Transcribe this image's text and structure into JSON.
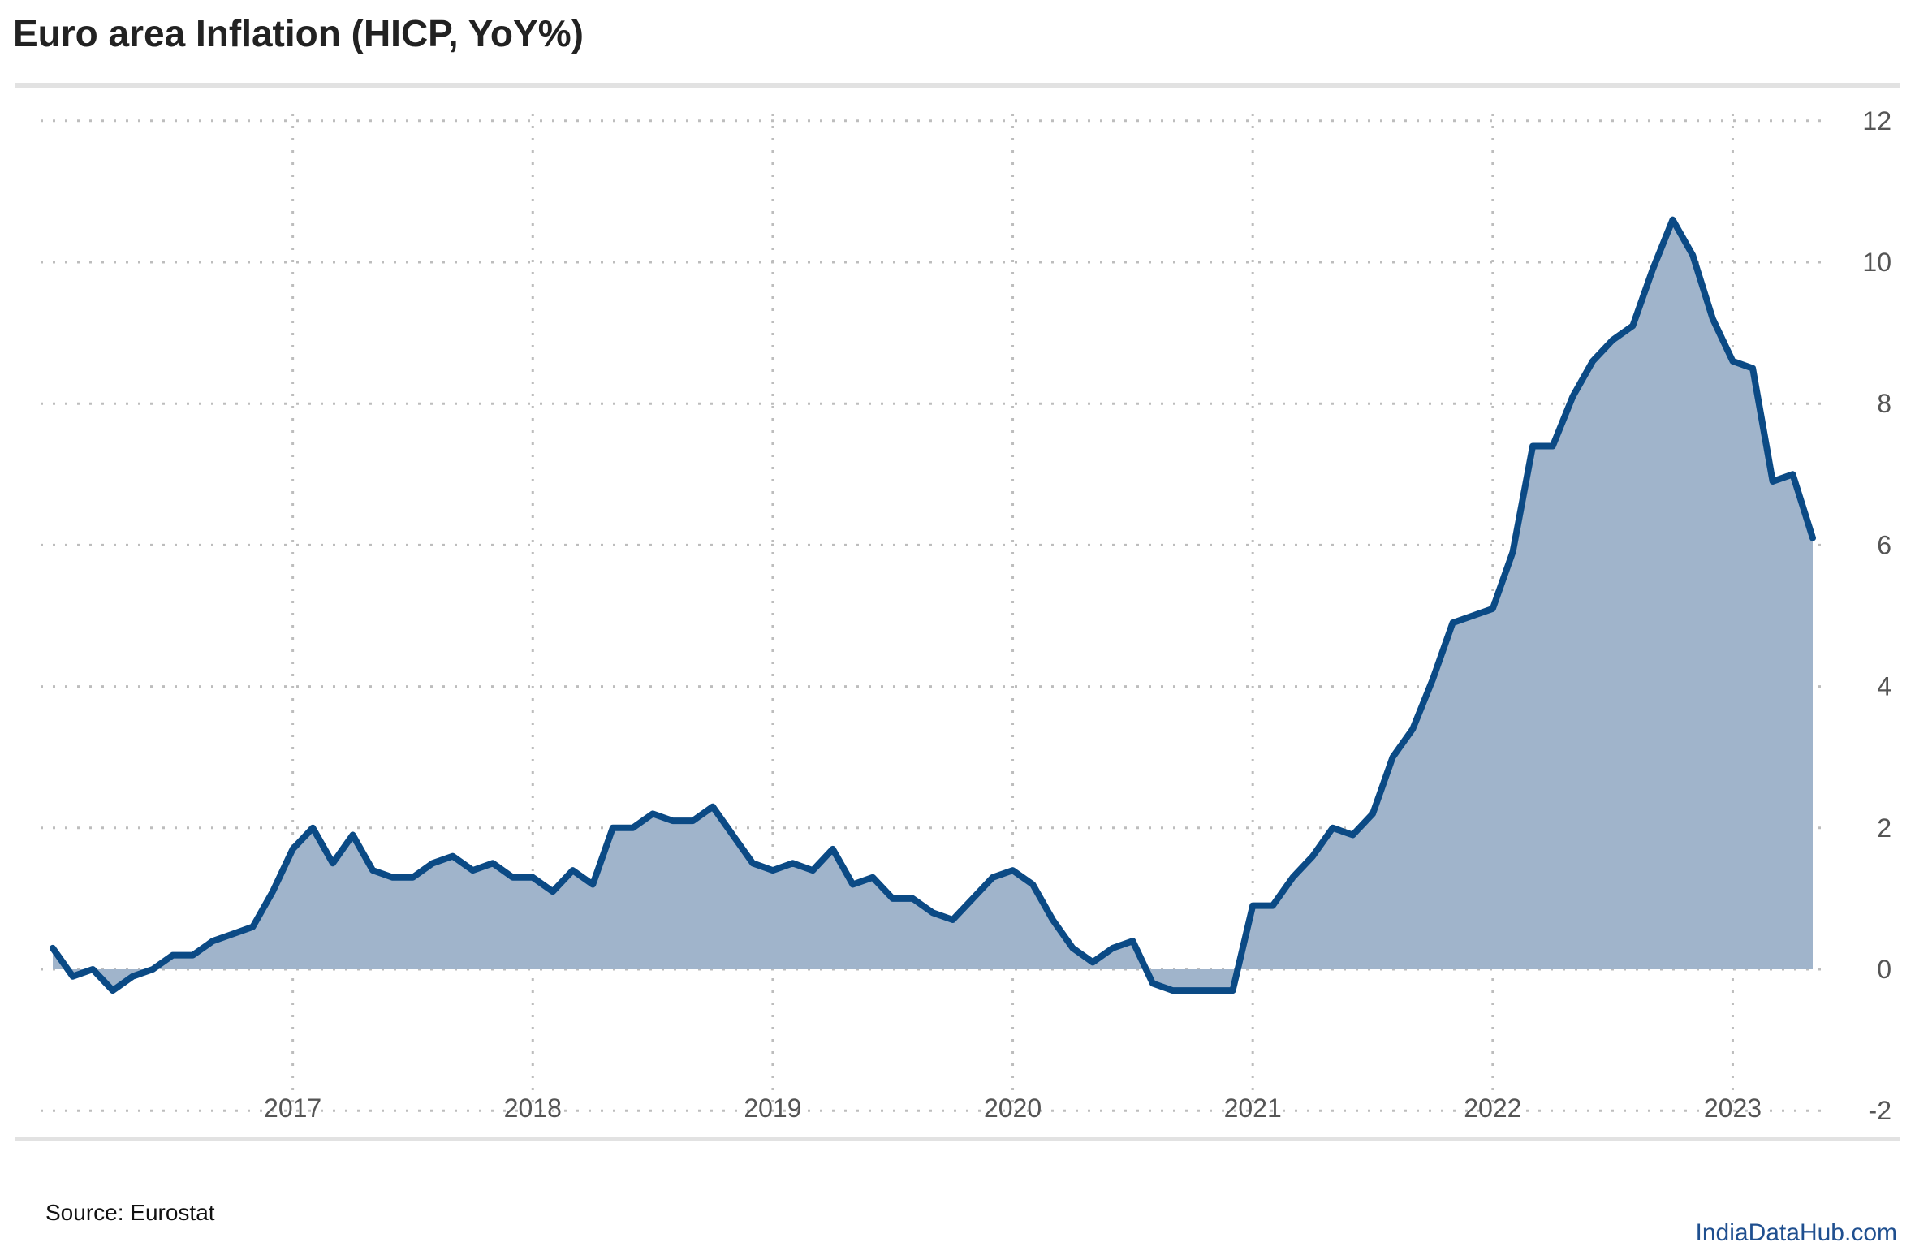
{
  "header": {
    "title": "Euro area Inflation (HICP, YoY%)"
  },
  "footer": {
    "source": "Source: Eurostat",
    "brand": "IndiaDataHub.com"
  },
  "colors": {
    "line": "#0b4a85",
    "fill": "#a0b4cb",
    "grid": "#bdbdbd",
    "rule": "#e2e2e2"
  },
  "chart_data": {
    "type": "area",
    "title": "Euro area Inflation (HICP, YoY%)",
    "xlabel": "",
    "ylabel": "",
    "ylim": [
      -2,
      12
    ],
    "yticks": [
      -2,
      0,
      2,
      4,
      6,
      8,
      10,
      12
    ],
    "xticks": [
      "2017",
      "2018",
      "2019",
      "2020",
      "2021",
      "2022",
      "2023"
    ],
    "grid": true,
    "y_axis_side": "right",
    "x_start": "2016-01",
    "x_end": "2023-05",
    "series": [
      {
        "values": [
          0.3,
          -0.1,
          0.0,
          -0.3,
          -0.1,
          0.0,
          0.2,
          0.2,
          0.4,
          0.5,
          0.6,
          1.1,
          1.7,
          2.0,
          1.5,
          1.9,
          1.4,
          1.3,
          1.3,
          1.5,
          1.6,
          1.4,
          1.5,
          1.3,
          1.3,
          1.1,
          1.4,
          1.2,
          2.0,
          2.0,
          2.2,
          2.1,
          2.1,
          2.3,
          1.9,
          1.5,
          1.4,
          1.5,
          1.4,
          1.7,
          1.2,
          1.3,
          1.0,
          1.0,
          0.8,
          0.7,
          1.0,
          1.3,
          1.4,
          1.2,
          0.7,
          0.3,
          0.1,
          0.3,
          0.4,
          -0.2,
          -0.3,
          -0.3,
          -0.3,
          -0.3,
          0.9,
          0.9,
          1.3,
          1.6,
          2.0,
          1.9,
          2.2,
          3.0,
          3.4,
          4.1,
          4.9,
          5.0,
          5.1,
          5.9,
          7.4,
          7.4,
          8.1,
          8.6,
          8.9,
          9.1,
          9.9,
          10.6,
          10.1,
          9.2,
          8.6,
          8.5,
          6.9,
          7.0,
          6.1
        ]
      }
    ]
  }
}
